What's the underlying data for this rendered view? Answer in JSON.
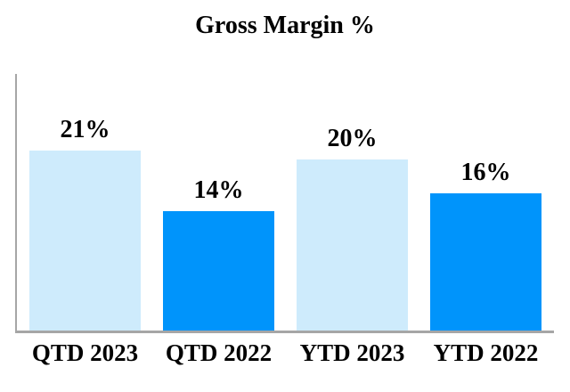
{
  "chart_data": {
    "type": "bar",
    "title": "Gross Margin %",
    "categories": [
      "QTD 2023",
      "QTD 2022",
      "YTD 2023",
      "YTD 2022"
    ],
    "values": [
      21,
      14,
      20,
      16
    ],
    "data_labels": [
      "21%",
      "14%",
      "20%",
      "16%"
    ],
    "bar_colors": [
      "#CEEBFC",
      "#0094FB",
      "#CEEBFC",
      "#0094FB"
    ],
    "series_note": "2023 bars light blue, 2022 bars dark blue",
    "xlabel": "",
    "ylabel": "",
    "ylim": [
      0,
      30
    ],
    "grid": false,
    "legend": false,
    "axis_color": "#A6A6A6",
    "text_color": "#000000",
    "background_color": "#FFFFFF"
  }
}
